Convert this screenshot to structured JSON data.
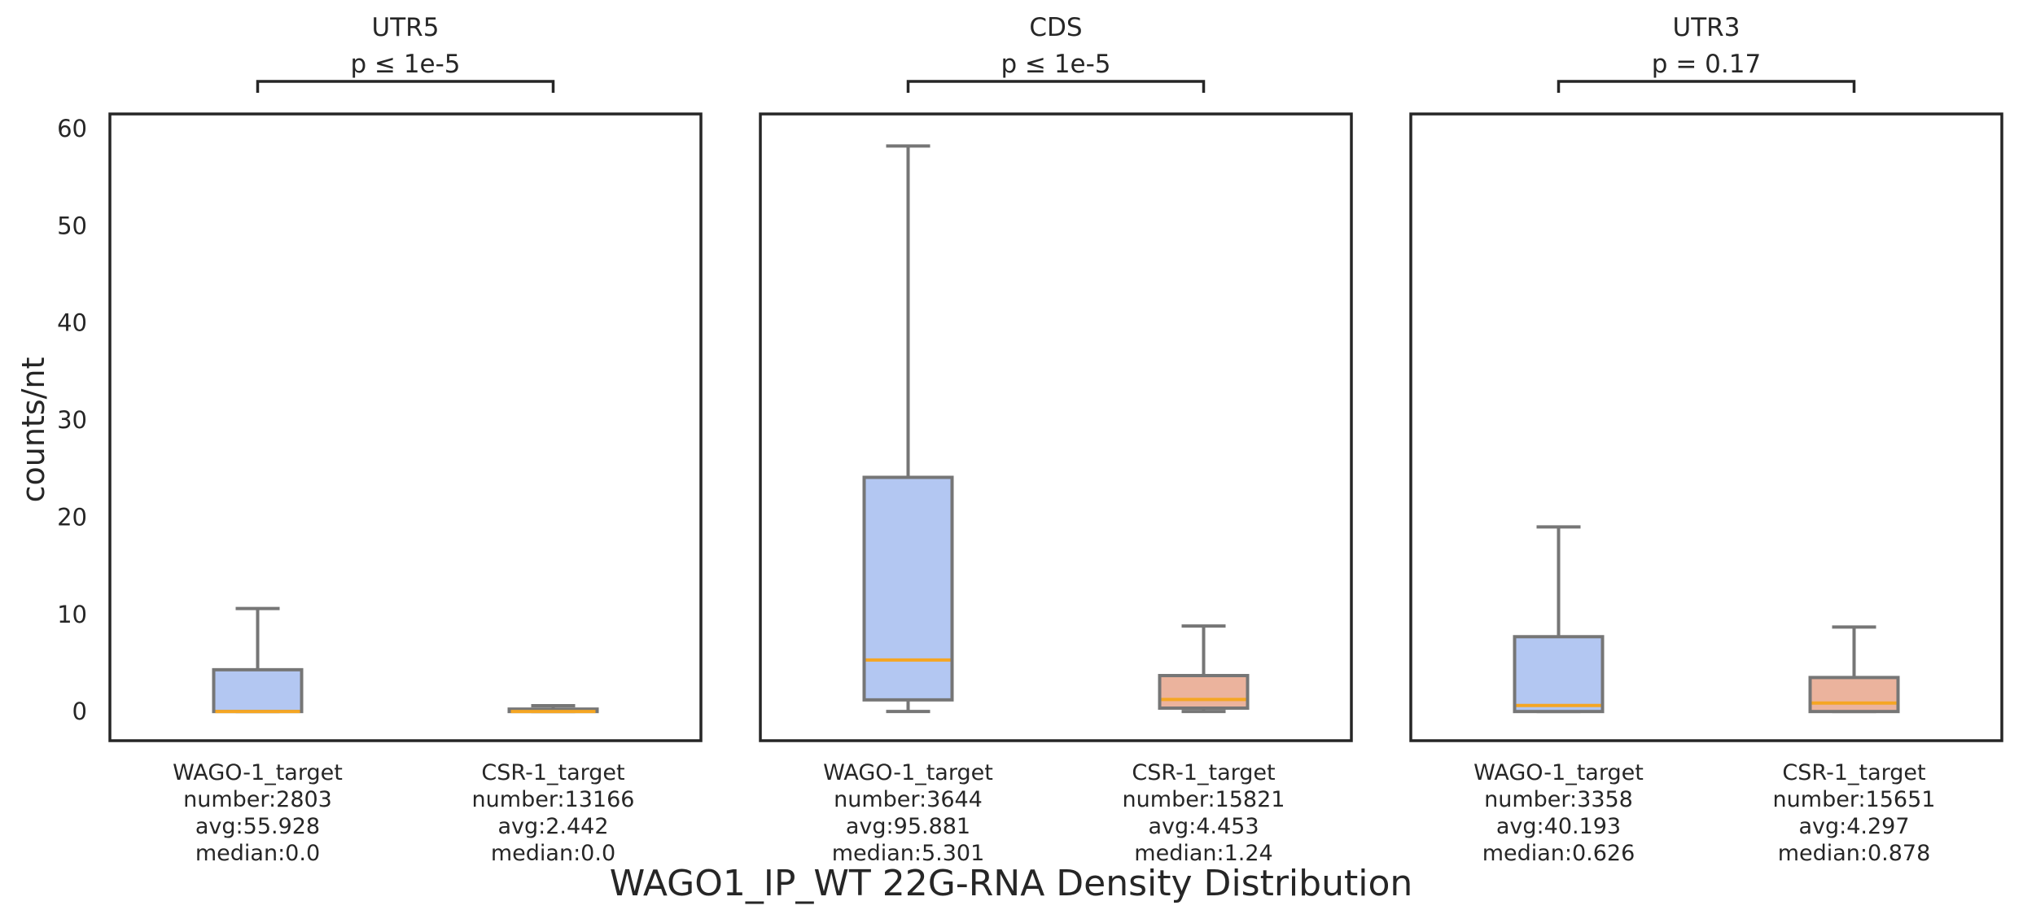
{
  "figure": {
    "title": "WAGO1_IP_WT 22G-RNA Density Distribution",
    "ylabel": "counts/nt"
  },
  "colors": {
    "wago": "#b3c7f2",
    "csr": "#ebb39d",
    "median_line": "#f5a623",
    "whisker": "#767676",
    "frame": "#262626"
  },
  "chart_data": [
    {
      "type": "box",
      "title": "UTR5",
      "pvalue": "p ≤ 1e-5",
      "ylim": [
        -3,
        61.5
      ],
      "yticks": [
        0,
        10,
        20,
        30,
        40,
        50,
        60
      ],
      "grid": false,
      "boxes": [
        {
          "category": "WAGO-1_target",
          "number": "number:2803",
          "avg": "avg:55.928",
          "median_label": "median:0.0",
          "whisker_low": 0.0,
          "q1": 0.0,
          "median": 0.0,
          "q3": 4.3,
          "whisker_high": 10.6,
          "color_key": "wago"
        },
        {
          "category": "CSR-1_target",
          "number": "number:13166",
          "avg": "avg:2.442",
          "median_label": "median:0.0",
          "whisker_low": 0.0,
          "q1": 0.0,
          "median": 0.0,
          "q3": 0.25,
          "whisker_high": 0.6,
          "color_key": "csr"
        }
      ]
    },
    {
      "type": "box",
      "title": "CDS",
      "pvalue": "p ≤ 1e-5",
      "ylim": [
        -3,
        61.5
      ],
      "yticks": [
        0,
        10,
        20,
        30,
        40,
        50,
        60
      ],
      "grid": false,
      "boxes": [
        {
          "category": "WAGO-1_target",
          "number": "number:3644",
          "avg": "avg:95.881",
          "median_label": "median:5.301",
          "whisker_low": 0.0,
          "q1": 1.2,
          "median": 5.301,
          "q3": 24.1,
          "whisker_high": 58.2,
          "color_key": "wago"
        },
        {
          "category": "CSR-1_target",
          "number": "number:15821",
          "avg": "avg:4.453",
          "median_label": "median:1.24",
          "whisker_low": 0.0,
          "q1": 0.35,
          "median": 1.24,
          "q3": 3.7,
          "whisker_high": 8.8,
          "color_key": "csr"
        }
      ]
    },
    {
      "type": "box",
      "title": "UTR3",
      "pvalue": "p = 0.17",
      "ylim": [
        -3,
        61.5
      ],
      "yticks": [
        0,
        10,
        20,
        30,
        40,
        50,
        60
      ],
      "grid": false,
      "boxes": [
        {
          "category": "WAGO-1_target",
          "number": "number:3358",
          "avg": "avg:40.193",
          "median_label": "median:0.626",
          "whisker_low": 0.0,
          "q1": 0.0,
          "median": 0.626,
          "q3": 7.7,
          "whisker_high": 19.0,
          "color_key": "wago"
        },
        {
          "category": "CSR-1_target",
          "number": "number:15651",
          "avg": "avg:4.297",
          "median_label": "median:0.878",
          "whisker_low": 0.0,
          "q1": 0.0,
          "median": 0.878,
          "q3": 3.5,
          "whisker_high": 8.7,
          "color_key": "csr"
        }
      ]
    }
  ]
}
